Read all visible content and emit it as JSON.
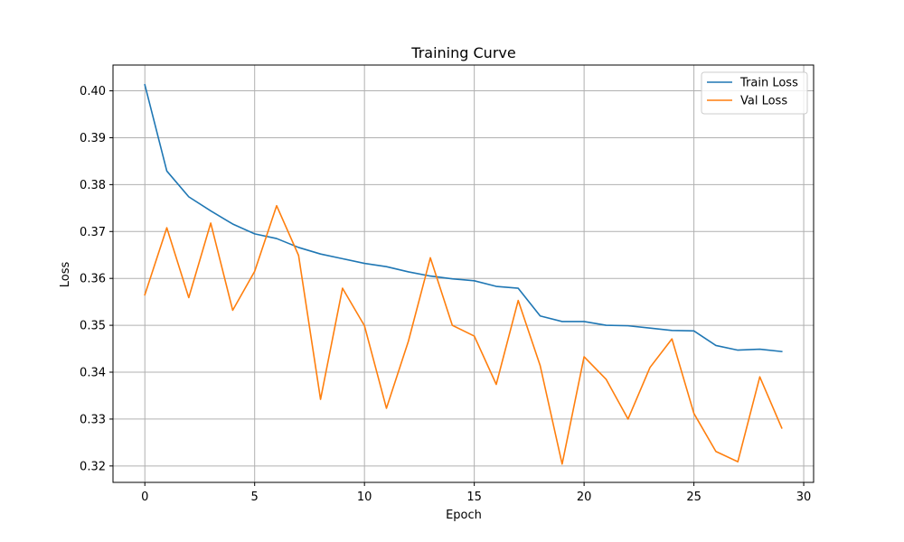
{
  "chart_data": {
    "type": "line",
    "title": "Training Curve",
    "xlabel": "Epoch",
    "ylabel": "Loss",
    "xlim": [
      -1.45,
      30.45
    ],
    "ylim": [
      0.3165,
      0.4055
    ],
    "xticks": [
      0,
      5,
      10,
      15,
      20,
      25,
      30
    ],
    "yticks": [
      0.32,
      0.33,
      0.34,
      0.35,
      0.36,
      0.37,
      0.38,
      0.39,
      0.4
    ],
    "grid": true,
    "legend_position": "top-right",
    "x": [
      0,
      1,
      2,
      3,
      4,
      5,
      6,
      7,
      8,
      9,
      10,
      11,
      12,
      13,
      14,
      15,
      16,
      17,
      18,
      19,
      20,
      21,
      22,
      23,
      24,
      25,
      26,
      27,
      28,
      29
    ],
    "series": [
      {
        "name": "Train Loss",
        "color": "#1f77b4",
        "values": [
          0.4013,
          0.3829,
          0.3774,
          0.3744,
          0.3716,
          0.3695,
          0.3685,
          0.3666,
          0.3652,
          0.3642,
          0.3632,
          0.3625,
          0.3614,
          0.3605,
          0.3599,
          0.3595,
          0.3583,
          0.3579,
          0.352,
          0.3508,
          0.3508,
          0.35,
          0.3499,
          0.3494,
          0.3489,
          0.3488,
          0.3457,
          0.3447,
          0.3449,
          0.3444
        ]
      },
      {
        "name": "Val Loss",
        "color": "#ff7f0e",
        "values": [
          0.3565,
          0.3708,
          0.3559,
          0.3718,
          0.3532,
          0.3615,
          0.3755,
          0.3649,
          0.3342,
          0.3579,
          0.3499,
          0.3323,
          0.3466,
          0.3644,
          0.35,
          0.3477,
          0.3374,
          0.3553,
          0.3414,
          0.3204,
          0.3433,
          0.3385,
          0.33,
          0.341,
          0.3471,
          0.3312,
          0.3231,
          0.3209,
          0.339,
          0.3281
        ]
      }
    ]
  }
}
